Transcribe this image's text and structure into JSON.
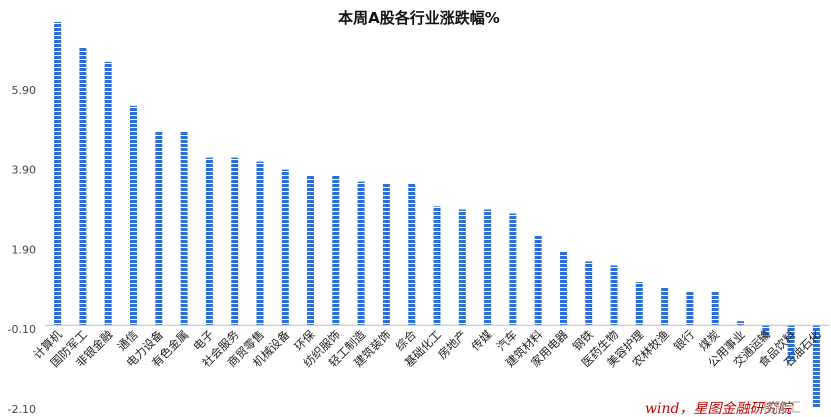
{
  "colors": {
    "bar": "#2e6fd6",
    "bar_gap": "#ffffff",
    "axis": "#bfbfbf",
    "note": "#c00000"
  },
  "annotation": "wind，星图金融研究院",
  "watermark": "格隆汇",
  "chart_data": {
    "type": "bar",
    "title": "本周A股各行业涨跌幅%",
    "xlabel": "",
    "ylabel": "",
    "ylim": [
      -2.1,
      7.9
    ],
    "yticks": [
      -2.1,
      -0.1,
      1.9,
      3.9,
      5.9
    ],
    "ytick_labels": [
      "-2.10",
      "-0.10",
      "1.90",
      "3.90",
      "5.90"
    ],
    "grid": false,
    "legend": "none",
    "categories": [
      "计算机",
      "国防军工",
      "非银金融",
      "通信",
      "电力设备",
      "有色金属",
      "电子",
      "社会服务",
      "商贸零售",
      "机械设备",
      "环保",
      "纺织服饰",
      "轻工制造",
      "建筑装饰",
      "综合",
      "基础化工",
      "房地产",
      "传媒",
      "汽车",
      "建筑材料",
      "家用电器",
      "钢铁",
      "医药生物",
      "美容护理",
      "农林牧渔",
      "银行",
      "煤炭",
      "公用事业",
      "交通运输",
      "食品饮料",
      "石油石化"
    ],
    "values": [
      7.6,
      6.95,
      6.6,
      5.5,
      4.85,
      4.85,
      4.2,
      4.2,
      4.1,
      3.9,
      3.75,
      3.75,
      3.6,
      3.55,
      3.55,
      2.98,
      2.9,
      2.9,
      2.8,
      2.25,
      1.85,
      1.6,
      1.5,
      1.08,
      0.95,
      0.85,
      0.85,
      0.1,
      -0.3,
      -0.9,
      -2.05
    ]
  }
}
